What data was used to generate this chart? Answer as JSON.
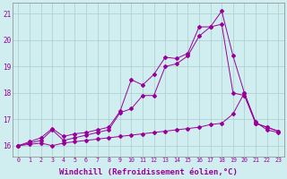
{
  "background_color": "#d0eef0",
  "line_color": "#990099",
  "grid_color": "#aacccc",
  "xlabel": "Windchill (Refroidissement éolien,°C)",
  "xlabel_fontsize": 6.5,
  "yticks": [
    16,
    17,
    18,
    19,
    20,
    21
  ],
  "xticks": [
    0,
    1,
    2,
    3,
    4,
    5,
    6,
    7,
    8,
    9,
    10,
    11,
    12,
    13,
    14,
    15,
    16,
    17,
    18,
    19,
    20,
    21,
    22,
    23
  ],
  "xlim": [
    -0.5,
    23.5
  ],
  "ylim": [
    15.6,
    21.4
  ],
  "series1_x": [
    0,
    1,
    2,
    3,
    4,
    5,
    6,
    7,
    8,
    9,
    10,
    11,
    12,
    13,
    14,
    15,
    16,
    17,
    18,
    19,
    20,
    21,
    22,
    23
  ],
  "series1_y": [
    16.0,
    16.15,
    16.3,
    16.65,
    16.35,
    16.45,
    16.5,
    16.6,
    16.7,
    17.3,
    18.5,
    18.3,
    18.7,
    19.35,
    19.3,
    19.5,
    20.5,
    20.5,
    21.1,
    19.4,
    18.0,
    16.85,
    16.7,
    16.55
  ],
  "series2_x": [
    0,
    1,
    2,
    3,
    4,
    5,
    6,
    7,
    8,
    9,
    10,
    11,
    12,
    13,
    14,
    15,
    16,
    17,
    18,
    19,
    20,
    21,
    22,
    23
  ],
  "series2_y": [
    16.0,
    16.1,
    16.2,
    16.6,
    16.2,
    16.3,
    16.4,
    16.5,
    16.6,
    17.25,
    17.4,
    17.9,
    17.9,
    19.0,
    19.1,
    19.4,
    20.15,
    20.5,
    20.6,
    18.0,
    17.9,
    16.85,
    16.7,
    16.55
  ],
  "series3_x": [
    0,
    1,
    2,
    3,
    4,
    5,
    6,
    7,
    8,
    9,
    10,
    11,
    12,
    13,
    14,
    15,
    16,
    17,
    18,
    19,
    20,
    21,
    22,
    23
  ],
  "series3_y": [
    16.0,
    16.05,
    16.1,
    16.0,
    16.1,
    16.15,
    16.2,
    16.25,
    16.3,
    16.35,
    16.4,
    16.45,
    16.5,
    16.55,
    16.6,
    16.65,
    16.7,
    16.8,
    16.85,
    17.2,
    18.0,
    16.9,
    16.6,
    16.5
  ]
}
